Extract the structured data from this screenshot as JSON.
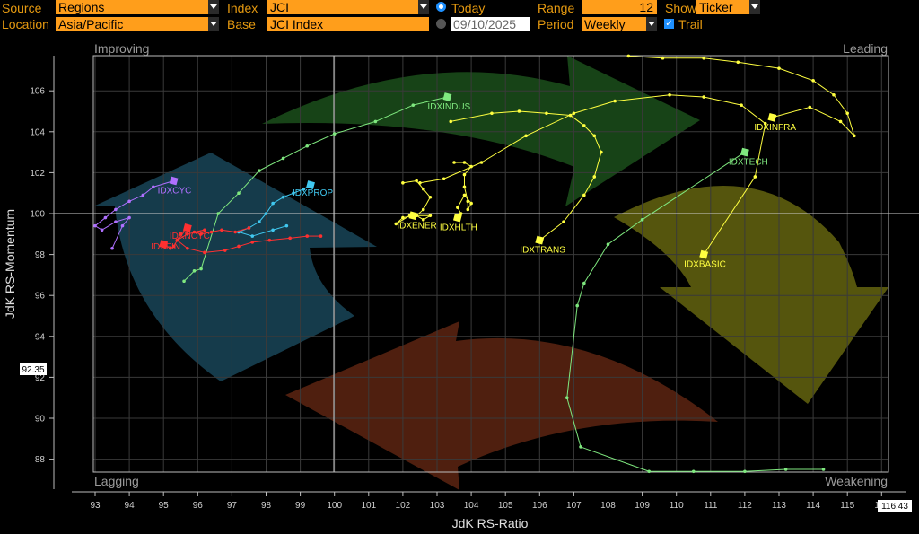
{
  "toolbar": {
    "source_label": "Source",
    "source_value": "Regions",
    "location_label": "Location",
    "location_value": "Asia/Pacific",
    "index_label": "Index",
    "index_value": "JCI",
    "base_label": "Base",
    "base_value": "JCI Index",
    "today_label": "Today",
    "date_value": "09/10/2025",
    "range_label": "Range",
    "range_value": "12",
    "period_label": "Period",
    "period_value": "Weekly",
    "show_label": "Show",
    "show_value": "Ticker",
    "trail_label": "Trail"
  },
  "colors": {
    "accent": "#ff9e1b",
    "label": "#e69a10"
  },
  "chart_data": {
    "type": "scatter",
    "xlabel": "JdK RS-Ratio",
    "ylabel": "JdK RS-Momentum",
    "xlim": [
      92.9,
      116.43
    ],
    "ylim": [
      87.3,
      107.6
    ],
    "x_ticks": [
      93,
      94,
      95,
      96,
      97,
      98,
      99,
      100,
      101,
      102,
      103,
      104,
      105,
      106,
      107,
      108,
      109,
      110,
      111,
      112,
      113,
      114,
      115,
      116
    ],
    "y_ticks": [
      88,
      90,
      92,
      94,
      96,
      98,
      100,
      102,
      104,
      106
    ],
    "x_marker": "116.43",
    "y_marker": "92.35",
    "quadrants": {
      "top_left": "Improving",
      "top_right": "Leading",
      "bottom_left": "Lagging",
      "bottom_right": "Weakening"
    },
    "grid": true,
    "series": [
      {
        "name": "IDXINDUS",
        "color": "#7fe87f",
        "points": [
          [
            95.6,
            96.7
          ],
          [
            95.9,
            97.2
          ],
          [
            96.1,
            97.3
          ],
          [
            96.6,
            100.0
          ],
          [
            97.2,
            101.0
          ],
          [
            97.8,
            102.1
          ],
          [
            98.5,
            102.7
          ],
          [
            99.2,
            103.3
          ],
          [
            100.0,
            103.9
          ],
          [
            101.2,
            104.5
          ],
          [
            102.3,
            105.3
          ],
          [
            103.3,
            105.7
          ]
        ]
      },
      {
        "name": "IDXINFRA",
        "color": "#ffff40",
        "points": [
          [
            108.6,
            107.7
          ],
          [
            109.6,
            107.6
          ],
          [
            110.8,
            107.6
          ],
          [
            111.8,
            107.4
          ],
          [
            113.0,
            107.1
          ],
          [
            114.0,
            106.5
          ],
          [
            114.6,
            105.8
          ],
          [
            115.0,
            104.9
          ],
          [
            115.2,
            103.8
          ],
          [
            114.8,
            104.5
          ],
          [
            113.9,
            105.2
          ],
          [
            112.8,
            104.7
          ]
        ]
      },
      {
        "name": "IDXTECH",
        "color": "#7fe87f",
        "points": [
          [
            114.3,
            87.5
          ],
          [
            113.2,
            87.5
          ],
          [
            112.0,
            87.4
          ],
          [
            110.5,
            87.4
          ],
          [
            109.2,
            87.4
          ],
          [
            107.2,
            88.6
          ],
          [
            106.8,
            91.0
          ],
          [
            107.1,
            95.5
          ],
          [
            107.3,
            96.6
          ],
          [
            108.0,
            98.5
          ],
          [
            109.0,
            99.7
          ],
          [
            112.0,
            103.0
          ]
        ]
      },
      {
        "name": "IDXBASIC",
        "color": "#ffff40",
        "points": [
          [
            102.5,
            101.5
          ],
          [
            103.2,
            101.7
          ],
          [
            104.3,
            102.5
          ],
          [
            105.6,
            103.8
          ],
          [
            107.0,
            104.9
          ],
          [
            108.2,
            105.5
          ],
          [
            109.8,
            105.8
          ],
          [
            110.8,
            105.7
          ],
          [
            111.9,
            105.3
          ],
          [
            112.6,
            104.4
          ],
          [
            112.3,
            101.8
          ],
          [
            110.8,
            98.0
          ]
        ]
      },
      {
        "name": "IDXTRANS",
        "color": "#ffff40",
        "points": [
          [
            103.4,
            104.5
          ],
          [
            104.6,
            104.9
          ],
          [
            105.4,
            105.0
          ],
          [
            106.2,
            104.9
          ],
          [
            106.9,
            104.8
          ],
          [
            107.3,
            104.3
          ],
          [
            107.6,
            103.8
          ],
          [
            107.8,
            103.0
          ],
          [
            107.6,
            101.8
          ],
          [
            107.3,
            100.9
          ],
          [
            106.7,
            99.6
          ],
          [
            106.0,
            98.7
          ]
        ]
      },
      {
        "name": "IDXENER",
        "color": "#ffff40",
        "points": [
          [
            102.0,
            101.5
          ],
          [
            102.4,
            101.6
          ],
          [
            102.6,
            101.2
          ],
          [
            102.8,
            100.8
          ],
          [
            102.6,
            100.2
          ],
          [
            102.4,
            99.9
          ],
          [
            102.6,
            99.7
          ],
          [
            102.8,
            99.9
          ],
          [
            102.2,
            99.9
          ],
          [
            101.8,
            99.5
          ],
          [
            102.0,
            99.8
          ],
          [
            102.3,
            99.9
          ]
        ]
      },
      {
        "name": "IDXHLTH",
        "color": "#ffff40",
        "points": [
          [
            103.5,
            102.5
          ],
          [
            103.8,
            102.5
          ],
          [
            104.0,
            102.3
          ],
          [
            103.8,
            101.9
          ],
          [
            103.8,
            101.3
          ],
          [
            103.9,
            100.6
          ],
          [
            103.9,
            100.2
          ],
          [
            104.0,
            100.5
          ],
          [
            103.8,
            100.9
          ],
          [
            103.6,
            100.3
          ],
          [
            103.7,
            100.0
          ],
          [
            103.6,
            99.8
          ]
        ]
      },
      {
        "name": "IDXPROP",
        "color": "#40c8f0",
        "points": [
          [
            98.6,
            99.4
          ],
          [
            98.2,
            99.2
          ],
          [
            97.6,
            98.9
          ],
          [
            97.2,
            99.1
          ],
          [
            97.5,
            99.3
          ],
          [
            97.8,
            99.6
          ],
          [
            98.0,
            100.0
          ],
          [
            98.2,
            100.5
          ],
          [
            98.5,
            100.8
          ],
          [
            98.8,
            101.0
          ],
          [
            99.1,
            101.2
          ],
          [
            99.3,
            101.4
          ]
        ]
      },
      {
        "name": "IDXCYC",
        "color": "#b070ff",
        "points": [
          [
            93.5,
            98.3
          ],
          [
            93.8,
            99.4
          ],
          [
            94.0,
            99.8
          ],
          [
            93.6,
            99.6
          ],
          [
            93.2,
            99.2
          ],
          [
            93.0,
            99.4
          ],
          [
            93.3,
            99.8
          ],
          [
            93.6,
            100.2
          ],
          [
            94.0,
            100.6
          ],
          [
            94.4,
            100.9
          ],
          [
            94.7,
            101.3
          ],
          [
            95.3,
            101.6
          ]
        ]
      },
      {
        "name": "IDXNCYC",
        "color": "#ff3030",
        "points": [
          [
            99.6,
            98.9
          ],
          [
            99.2,
            98.9
          ],
          [
            98.7,
            98.8
          ],
          [
            98.1,
            98.7
          ],
          [
            97.6,
            98.6
          ],
          [
            97.2,
            98.4
          ],
          [
            96.8,
            98.2
          ],
          [
            96.2,
            98.1
          ],
          [
            95.7,
            98.3
          ],
          [
            95.4,
            98.7
          ],
          [
            95.5,
            99.0
          ],
          [
            95.7,
            99.3
          ]
        ]
      },
      {
        "name": "IDXFIN",
        "color": "#ff3030",
        "points": [
          [
            97.5,
            99.3
          ],
          [
            97.1,
            99.1
          ],
          [
            96.7,
            99.2
          ],
          [
            96.4,
            99.1
          ],
          [
            96.1,
            99.0
          ],
          [
            95.9,
            99.1
          ],
          [
            96.2,
            99.2
          ],
          [
            95.7,
            99.0
          ],
          [
            95.4,
            98.7
          ],
          [
            95.3,
            98.4
          ],
          [
            95.2,
            98.3
          ],
          [
            95.0,
            98.5
          ]
        ]
      }
    ]
  }
}
